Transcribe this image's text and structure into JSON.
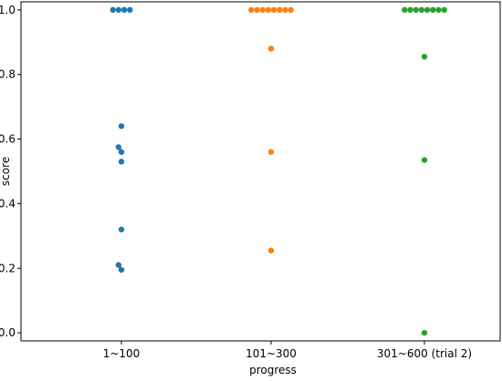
{
  "chart_data": {
    "type": "scatter",
    "title": "",
    "xlabel": "progress",
    "ylabel": "score",
    "ylim": [
      -0.025,
      1.025
    ],
    "yticks": [
      0.0,
      0.2,
      0.4,
      0.6,
      0.8,
      1.0
    ],
    "ytick_labels": [
      "0.0",
      "0.2",
      "0.4",
      "0.6",
      "0.8",
      "1.0"
    ],
    "categories": [
      "1~100",
      "101~300",
      "301~600 (trial 2)"
    ],
    "grid": false,
    "legend": "none",
    "series": [
      {
        "category": "1~100",
        "color": "#1f77b4",
        "points": [
          {
            "offset": -0.3,
            "y": 1.0
          },
          {
            "offset": -0.1,
            "y": 1.0
          },
          {
            "offset": 0.1,
            "y": 1.0
          },
          {
            "offset": 0.3,
            "y": 1.0
          },
          {
            "offset": 0.0,
            "y": 0.64
          },
          {
            "offset": -0.1,
            "y": 0.575
          },
          {
            "offset": 0.0,
            "y": 0.56
          },
          {
            "offset": 0.0,
            "y": 0.53
          },
          {
            "offset": 0.0,
            "y": 0.32
          },
          {
            "offset": -0.1,
            "y": 0.21
          },
          {
            "offset": 0.0,
            "y": 0.195
          }
        ]
      },
      {
        "category": "101~300",
        "color": "#ff7f0e",
        "points": [
          {
            "offset": -0.7,
            "y": 1.0
          },
          {
            "offset": -0.5,
            "y": 1.0
          },
          {
            "offset": -0.3,
            "y": 1.0
          },
          {
            "offset": -0.1,
            "y": 1.0
          },
          {
            "offset": 0.1,
            "y": 1.0
          },
          {
            "offset": 0.3,
            "y": 1.0
          },
          {
            "offset": 0.5,
            "y": 1.0
          },
          {
            "offset": 0.7,
            "y": 1.0
          },
          {
            "offset": 0.0,
            "y": 0.88
          },
          {
            "offset": 0.0,
            "y": 0.56
          },
          {
            "offset": 0.0,
            "y": 0.255
          }
        ]
      },
      {
        "category": "301~600 (trial 2)",
        "color": "#2ca02c",
        "points": [
          {
            "offset": -0.7,
            "y": 1.0
          },
          {
            "offset": -0.5,
            "y": 1.0
          },
          {
            "offset": -0.3,
            "y": 1.0
          },
          {
            "offset": -0.1,
            "y": 1.0
          },
          {
            "offset": 0.1,
            "y": 1.0
          },
          {
            "offset": 0.3,
            "y": 1.0
          },
          {
            "offset": 0.5,
            "y": 1.0
          },
          {
            "offset": 0.7,
            "y": 1.0
          },
          {
            "offset": 0.0,
            "y": 0.855
          },
          {
            "offset": 0.0,
            "y": 0.535
          },
          {
            "offset": 0.0,
            "y": 0.0
          }
        ]
      }
    ]
  }
}
